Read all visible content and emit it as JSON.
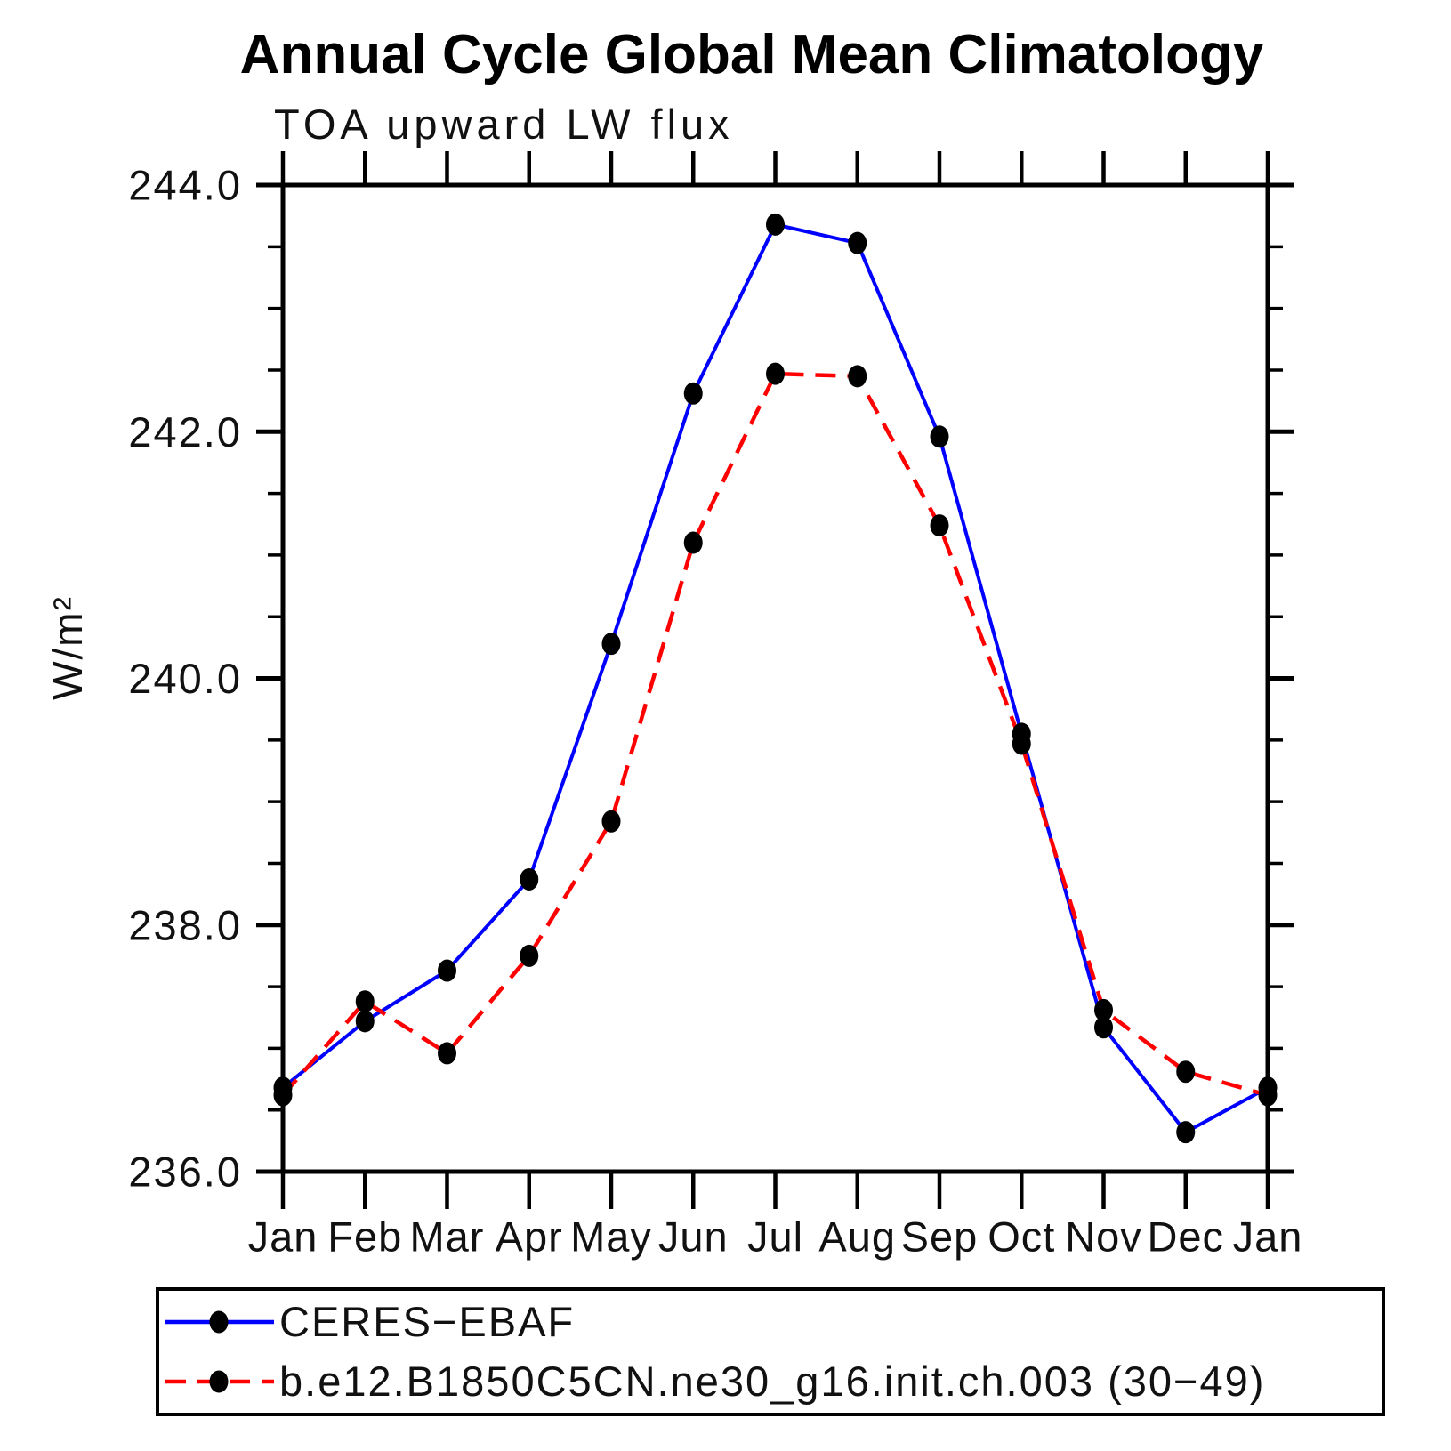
{
  "page": {
    "background": "#ffffff"
  },
  "chart_data": {
    "type": "line",
    "title": "Annual Cycle Global Mean Climatology",
    "subtitle": "TOA upward LW flux",
    "ylabel": "W/m²",
    "xlabel": "",
    "categories": [
      "Jan",
      "Feb",
      "Mar",
      "Apr",
      "May",
      "Jun",
      "Jul",
      "Aug",
      "Sep",
      "Oct",
      "Nov",
      "Dec",
      "Jan"
    ],
    "ylim": [
      236.0,
      244.0
    ],
    "yticks": [
      {
        "value": 244.0,
        "label": "244.0"
      },
      {
        "value": 242.0,
        "label": "242.0"
      },
      {
        "value": 240.0,
        "label": "240.0"
      },
      {
        "value": 238.0,
        "label": "238.0"
      },
      {
        "value": 236.0,
        "label": "236.0"
      }
    ],
    "ytick_minor_step": 0.5,
    "grid": false,
    "axis_color": "#000000",
    "marker": "filled-circle",
    "marker_color": "#000000",
    "legend_position": "bottom-left-box",
    "series": [
      {
        "name": "CERES−EBAF",
        "color": "#0000ff",
        "line_style": "solid",
        "values": [
          236.68,
          237.22,
          237.63,
          238.37,
          240.28,
          242.31,
          243.68,
          243.53,
          241.96,
          239.55,
          237.17,
          236.32,
          236.68
        ]
      },
      {
        "name": "b.e12.B1850C5CN.ne30_g16.init.ch.003 (30−49)",
        "color": "#ff0000",
        "line_style": "dashed",
        "values": [
          236.62,
          237.38,
          236.96,
          237.75,
          238.84,
          241.1,
          242.47,
          242.45,
          241.24,
          239.47,
          237.31,
          236.81,
          236.62
        ]
      }
    ]
  }
}
